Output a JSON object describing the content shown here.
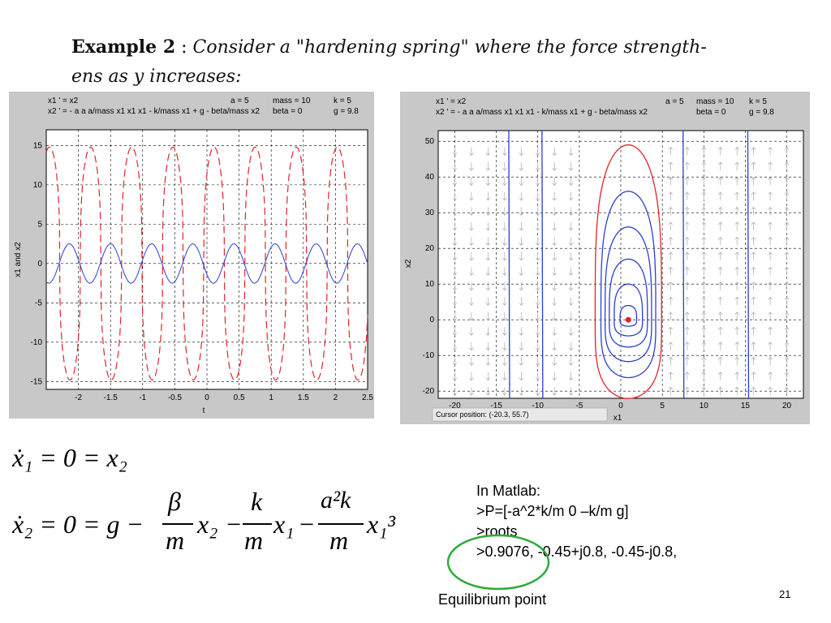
{
  "slide": {
    "title_bold": "Example 2",
    "title_colon": " : ",
    "title_italic_1": "Consider a \"hardening spring\" where the force strength-",
    "title_italic_2": "ens as y increases:",
    "page_number": "21"
  },
  "left_plot": {
    "hdr_eq1": "x1 ' = x2",
    "hdr_eq2": "x2 ' = - a a a/mass x1 x1 x1 - k/mass x1 + g - beta/mass x2",
    "hdr_a": "a = 5",
    "hdr_mass": "mass = 10",
    "hdr_k": "k = 5",
    "hdr_beta": "beta = 0",
    "hdr_g": "g = 9.8",
    "xlabel": "t",
    "ylabel": "x1 and x2",
    "xticks": [
      "-2",
      "-1.5",
      "-1",
      "-0.5",
      "0",
      "0.5",
      "1",
      "1.5",
      "2",
      "2.5"
    ],
    "yticks": [
      "15",
      "10",
      "5",
      "0",
      "-5",
      "-10",
      "-15"
    ]
  },
  "right_plot": {
    "hdr_eq1": "x1 ' = x2",
    "hdr_eq2": "x2 ' = - a a a/mass x1 x1 x1 - k/mass x1 + g - beta/mass x2",
    "hdr_a": "a = 5",
    "hdr_mass": "mass = 10",
    "hdr_k": "k = 5",
    "hdr_beta": "beta = 0",
    "hdr_g": "g = 9.8",
    "xlabel": "x1",
    "ylabel": "x2",
    "xticks": [
      "-20",
      "-15",
      "-10",
      "-5",
      "0",
      "5",
      "10",
      "15",
      "20"
    ],
    "yticks": [
      "50",
      "40",
      "30",
      "20",
      "10",
      "0",
      "-10",
      "-20"
    ],
    "cursor_text": "Cursor position:  (-20.3, 55.7)"
  },
  "equations": {
    "eq1": "ẋ₁ = 0 = x₂",
    "eq2_left": "ẋ₂ = 0 = g −",
    "beta": "β",
    "m": "m",
    "k": "k",
    "a2k": "a²k",
    "x2": "x₂",
    "x1": "x₁",
    "x1cube": "x₁³",
    "minus": "−"
  },
  "matlab": {
    "line1": "In Matlab:",
    "line2": ">P=[-a^2*k/m 0 –k/m g]",
    "line3": ">roots",
    "line4": ">0.9076, -0.45+j0.8, -0.45-j0.8,"
  },
  "annotation": {
    "equilibrium": "Equilibrium point",
    "circle_color": "#2eaa3a"
  },
  "colors": {
    "red": "#e0242a",
    "blue": "#2a3fd0",
    "panel": "#c8c8c8"
  },
  "chart_data": [
    {
      "type": "line",
      "title": "",
      "xlabel": "t",
      "ylabel": "x1 and x2",
      "xlim": [
        -2.5,
        2.5
      ],
      "ylim": [
        -16,
        17
      ],
      "grid": true,
      "series": [
        {
          "name": "x2",
          "style": "dashed",
          "color": "#e0242a",
          "amplitude": 14.8,
          "period": 0.64
        },
        {
          "name": "x1",
          "style": "solid",
          "color": "#2a3fd0",
          "amplitude": 2.5,
          "period": 0.64
        }
      ]
    },
    {
      "type": "line",
      "title": "",
      "xlabel": "x1",
      "ylabel": "x2",
      "xlim": [
        -22,
        22
      ],
      "ylim": [
        -22,
        53
      ],
      "grid": true,
      "equilibrium": [
        0.9076,
        0
      ],
      "orbits": [
        {
          "color": "#e0242a",
          "x1_half_width": 4,
          "x2_peak": 49
        },
        {
          "color": "#2a3fd0",
          "x1_half_width": 3.3,
          "x2_peak": 36
        },
        {
          "color": "#2a3fd0",
          "x1_half_width": 2.8,
          "x2_peak": 26
        },
        {
          "color": "#2a3fd0",
          "x1_half_width": 2.3,
          "x2_peak": 17
        },
        {
          "color": "#2a3fd0",
          "x1_half_width": 1.7,
          "x2_peak": 10
        },
        {
          "color": "#2a3fd0",
          "x1_half_width": 1,
          "x2_peak": 4
        }
      ],
      "separatrix_x1": [
        -13.5,
        -9.5,
        7.5,
        15.3
      ]
    }
  ]
}
